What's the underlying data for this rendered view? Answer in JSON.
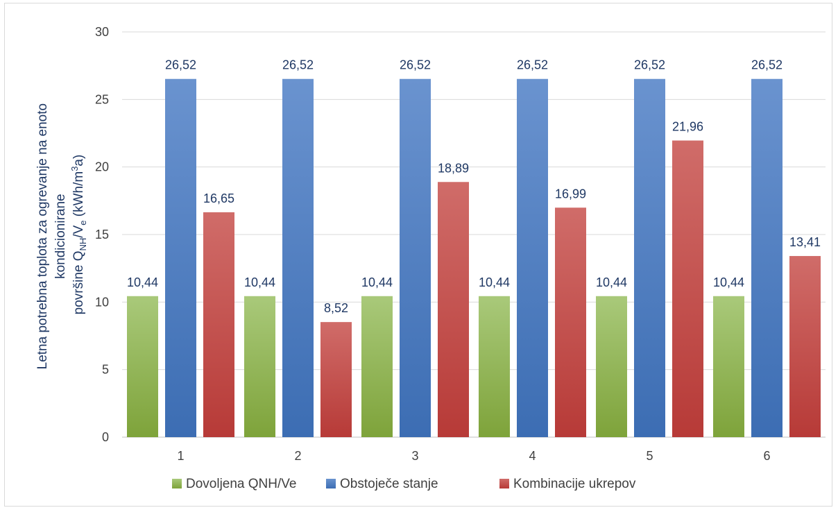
{
  "chart_data": {
    "type": "bar",
    "categories": [
      "1",
      "2",
      "3",
      "4",
      "5",
      "6"
    ],
    "series": [
      {
        "name": "Dovoljena QNH/Ve",
        "values": [
          10.44,
          10.44,
          10.44,
          10.44,
          10.44,
          10.44
        ],
        "labels": [
          "10,44",
          "10,44",
          "10,44",
          "10,44",
          "10,44",
          "10,44"
        ],
        "color": "#8db14b"
      },
      {
        "name": "Obstoječe stanje",
        "values": [
          26.52,
          26.52,
          26.52,
          26.52,
          26.52,
          26.52
        ],
        "labels": [
          "26,52",
          "26,52",
          "26,52",
          "26,52",
          "26,52",
          "26,52"
        ],
        "color": "#4f7fc1"
      },
      {
        "name": "Kombinacije ukrepov",
        "values": [
          16.65,
          8.52,
          18.89,
          16.99,
          21.96,
          13.41
        ],
        "labels": [
          "16,65",
          "8,52",
          "18,89",
          "16,99",
          "21,96",
          "13,41"
        ],
        "color": "#c0504d"
      }
    ],
    "ylim": [
      0,
      30
    ],
    "yticks": [
      0,
      5,
      10,
      15,
      20,
      25,
      30
    ],
    "grid": true,
    "legend_position": "bottom",
    "ylabel": {
      "line1": "Letna potrebna toplota za ogrevanje na enoto",
      "line2": "kondicionirane",
      "line3_prefix": "površine Q",
      "line3_sub1": "NH",
      "line3_mid": "/V",
      "line3_sub2": "e",
      "line3_unit_prefix": " (kWh/m",
      "line3_sup": "3",
      "line3_unit_suffix": "a)"
    }
  }
}
